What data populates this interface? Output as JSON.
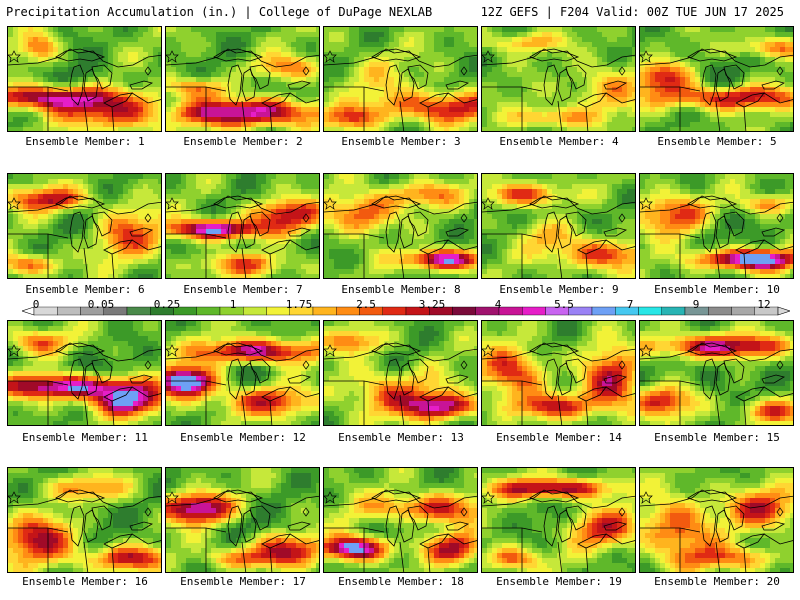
{
  "header": {
    "title": "Precipitation Accumulation (in.) | College of DuPage NEXLAB",
    "run_info": "12Z GEFS | F204 Valid: 00Z TUE JUN 17 2025"
  },
  "colorbar": {
    "labels": [
      "0",
      "0.05",
      "0.25",
      "1",
      "1.75",
      "2.5",
      "3.25",
      "4",
      "5.5",
      "7",
      "9",
      "12"
    ],
    "colors": [
      "#d8d8d8",
      "#bdbdbd",
      "#9e9e9e",
      "#7a7a7a",
      "#4a8a4a",
      "#2e7d2e",
      "#3c9a28",
      "#5fb82a",
      "#8fd12e",
      "#c6e83a",
      "#f2f237",
      "#ffd633",
      "#ffb41e",
      "#ff8c14",
      "#f25a0f",
      "#e02a14",
      "#c41418",
      "#a00a28",
      "#7a0a3a",
      "#a0126e",
      "#c81496",
      "#e61ec8",
      "#c864f0",
      "#9a82f5",
      "#6ea0f5",
      "#46c8f0",
      "#28e6e6",
      "#28b4b4",
      "#789696",
      "#8c8c8c",
      "#a8a8a8",
      "#c8c8c8"
    ]
  },
  "panels": [
    {
      "label": "Ensemble Member: 1"
    },
    {
      "label": "Ensemble Member: 2"
    },
    {
      "label": "Ensemble Member: 3"
    },
    {
      "label": "Ensemble Member: 4"
    },
    {
      "label": "Ensemble Member: 5"
    },
    {
      "label": "Ensemble Member: 6"
    },
    {
      "label": "Ensemble Member: 7"
    },
    {
      "label": "Ensemble Member: 8"
    },
    {
      "label": "Ensemble Member: 9"
    },
    {
      "label": "Ensemble Member: 10"
    },
    {
      "label": "Ensemble Member: 11"
    },
    {
      "label": "Ensemble Member: 12"
    },
    {
      "label": "Ensemble Member: 13"
    },
    {
      "label": "Ensemble Member: 14"
    },
    {
      "label": "Ensemble Member: 15"
    },
    {
      "label": "Ensemble Member: 16"
    },
    {
      "label": "Ensemble Member: 17"
    },
    {
      "label": "Ensemble Member: 18"
    },
    {
      "label": "Ensemble Member: 19"
    },
    {
      "label": "Ensemble Member: 20"
    }
  ]
}
